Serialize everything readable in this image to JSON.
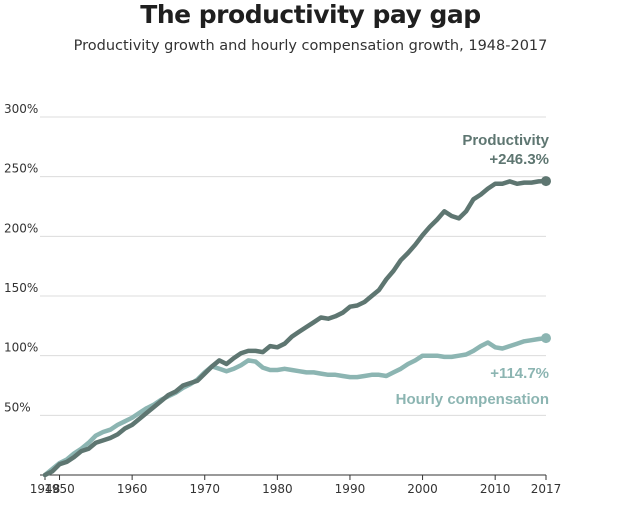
{
  "title": "The productivity pay gap",
  "subtitle": "Productivity growth and hourly compensation growth, 1948-2017",
  "chart_data": {
    "type": "line",
    "xlim": [
      1948,
      2017
    ],
    "ylim": [
      0,
      300
    ],
    "x_ticks": [
      1948,
      1950,
      1960,
      1970,
      1980,
      1990,
      2000,
      2010,
      2017
    ],
    "x_tick_labels": [
      "1948",
      "1950",
      "1960",
      "1970",
      "1980",
      "1990",
      "2000",
      "2010",
      "2017"
    ],
    "y_ticks": [
      50,
      100,
      150,
      200,
      250,
      300
    ],
    "y_tick_labels": [
      "50%",
      "100%",
      "150%",
      "200%",
      "250%",
      "300%"
    ],
    "grid": "horizontal",
    "series": [
      {
        "name": "Productivity",
        "color": "#5e7671",
        "end_label": "+246.3%",
        "x": [
          1948,
          1949,
          1950,
          1951,
          1952,
          1953,
          1954,
          1955,
          1956,
          1957,
          1958,
          1959,
          1960,
          1961,
          1962,
          1963,
          1964,
          1965,
          1966,
          1967,
          1968,
          1969,
          1970,
          1971,
          1972,
          1973,
          1974,
          1975,
          1976,
          1977,
          1978,
          1979,
          1980,
          1981,
          1982,
          1983,
          1984,
          1985,
          1986,
          1987,
          1988,
          1989,
          1990,
          1991,
          1992,
          1993,
          1994,
          1995,
          1996,
          1997,
          1998,
          1999,
          2000,
          2001,
          2002,
          2003,
          2004,
          2005,
          2006,
          2007,
          2008,
          2009,
          2010,
          2011,
          2012,
          2013,
          2014,
          2015,
          2016,
          2017
        ],
        "values": [
          0,
          3,
          9,
          11,
          15,
          20,
          22,
          27,
          29,
          31,
          34,
          39,
          42,
          47,
          52,
          57,
          62,
          67,
          70,
          75,
          77,
          79,
          85,
          91,
          96,
          93,
          98,
          102,
          104,
          104,
          103,
          108,
          107,
          110,
          116,
          120,
          124,
          128,
          132,
          131,
          133,
          136,
          141,
          142,
          145,
          150,
          155,
          164,
          171,
          180,
          186,
          193,
          201,
          208,
          214,
          221,
          217,
          215,
          221,
          231,
          235,
          240,
          244,
          244,
          246,
          244,
          245,
          245,
          246,
          246.3
        ]
      },
      {
        "name": "Hourly compensation",
        "color": "#8cb5b2",
        "end_label": "+114.7%",
        "x": [
          1948,
          1949,
          1950,
          1951,
          1952,
          1953,
          1954,
          1955,
          1956,
          1957,
          1958,
          1959,
          1960,
          1961,
          1962,
          1963,
          1964,
          1965,
          1966,
          1967,
          1968,
          1969,
          1970,
          1971,
          1972,
          1973,
          1974,
          1975,
          1976,
          1977,
          1978,
          1979,
          1980,
          1981,
          1982,
          1983,
          1984,
          1985,
          1986,
          1987,
          1988,
          1989,
          1990,
          1991,
          1992,
          1993,
          1994,
          1995,
          1996,
          1997,
          1998,
          1999,
          2000,
          2001,
          2002,
          2003,
          2004,
          2005,
          2006,
          2007,
          2008,
          2009,
          2010,
          2011,
          2012,
          2013,
          2014,
          2015,
          2016,
          2017
        ],
        "values": [
          0,
          5,
          10,
          13,
          18,
          22,
          27,
          33,
          36,
          38,
          42,
          45,
          48,
          52,
          56,
          59,
          63,
          66,
          69,
          73,
          76,
          80,
          86,
          91,
          89,
          87,
          89,
          92,
          96,
          95,
          90,
          88,
          88,
          89,
          88,
          87,
          86,
          86,
          85,
          84,
          84,
          83,
          82,
          82,
          83,
          84,
          84,
          83,
          86,
          89,
          93,
          96,
          100,
          100,
          100,
          99,
          99,
          100,
          101,
          104,
          108,
          111,
          107,
          106,
          108,
          110,
          112,
          113,
          114,
          114.7
        ]
      }
    ]
  }
}
